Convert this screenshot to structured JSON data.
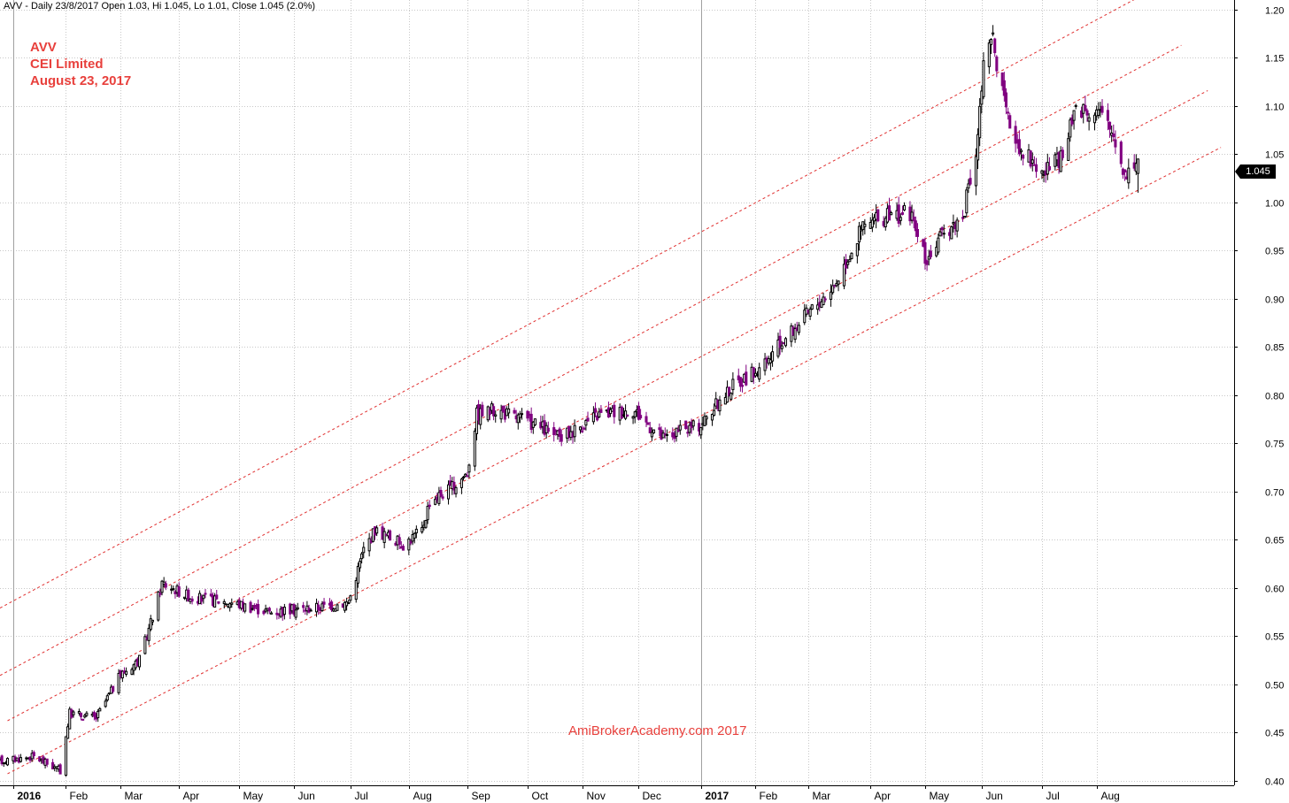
{
  "header": {
    "text": "AVV - Daily 23/8/2017 Open 1.03, Hi 1.045, Lo 1.01, Close 1.045 (2.0%)"
  },
  "labels": {
    "ticker": "AVV",
    "company": "CEI Limited",
    "date": "August 23, 2017",
    "watermark": "AmiBrokerAcademy.com  2017",
    "last_price": "1.045"
  },
  "colors": {
    "annotation": "#e8403c",
    "up_candle": "#000000",
    "down_candle": "#800080",
    "channel": "#e03030",
    "grid": "#c8c8c8"
  },
  "chart_data": {
    "type": "candlestick",
    "x_axis_labels": [
      {
        "label": "2016",
        "date": "2016-01-04",
        "bold": true
      },
      {
        "label": "Feb",
        "date": "2016-02-01"
      },
      {
        "label": "Mar",
        "date": "2016-03-01"
      },
      {
        "label": "Apr",
        "date": "2016-04-01"
      },
      {
        "label": "May",
        "date": "2016-05-03"
      },
      {
        "label": "Jun",
        "date": "2016-06-01"
      },
      {
        "label": "Jul",
        "date": "2016-07-01"
      },
      {
        "label": "Aug",
        "date": "2016-08-01"
      },
      {
        "label": "Sep",
        "date": "2016-09-01"
      },
      {
        "label": "Oct",
        "date": "2016-10-03"
      },
      {
        "label": "Nov",
        "date": "2016-11-01"
      },
      {
        "label": "Dec",
        "date": "2016-12-01"
      },
      {
        "label": "2017",
        "date": "2017-01-03",
        "bold": true
      },
      {
        "label": "Feb",
        "date": "2017-02-01"
      },
      {
        "label": "Mar",
        "date": "2017-03-01"
      },
      {
        "label": "Apr",
        "date": "2017-04-03"
      },
      {
        "label": "May",
        "date": "2017-05-02"
      },
      {
        "label": "Jun",
        "date": "2017-06-01"
      },
      {
        "label": "Jul",
        "date": "2017-07-03"
      },
      {
        "label": "Aug",
        "date": "2017-08-01"
      }
    ],
    "x_range": [
      "2015-12-28",
      "2017-10-13"
    ],
    "y_ticks": [
      "0.40",
      "0.45",
      "0.50",
      "0.55",
      "0.60",
      "0.65",
      "0.70",
      "0.75",
      "0.80",
      "0.85",
      "0.90",
      "0.95",
      "1.00",
      "1.05",
      "1.10",
      "1.15",
      "1.20"
    ],
    "ylim": [
      0.395,
      1.21
    ],
    "last": {
      "date": "2017-08-23",
      "open": 1.03,
      "high": 1.045,
      "low": 1.01,
      "close": 1.045
    },
    "price_path": [
      [
        "2015-12-28",
        0.42
      ],
      [
        "2016-01-15",
        0.425
      ],
      [
        "2016-01-29",
        0.41
      ],
      [
        "2016-02-03",
        0.47
      ],
      [
        "2016-02-17",
        0.465
      ],
      [
        "2016-03-01",
        0.51
      ],
      [
        "2016-03-11",
        0.525
      ],
      [
        "2016-03-18",
        0.57
      ],
      [
        "2016-03-23",
        0.605
      ],
      [
        "2016-04-08",
        0.59
      ],
      [
        "2016-04-28",
        0.585
      ],
      [
        "2016-05-20",
        0.575
      ],
      [
        "2016-06-15",
        0.58
      ],
      [
        "2016-06-30",
        0.585
      ],
      [
        "2016-07-08",
        0.64
      ],
      [
        "2016-07-14",
        0.66
      ],
      [
        "2016-07-29",
        0.645
      ],
      [
        "2016-08-08",
        0.66
      ],
      [
        "2016-08-12",
        0.69
      ],
      [
        "2016-08-25",
        0.705
      ],
      [
        "2016-09-01",
        0.72
      ],
      [
        "2016-09-06",
        0.78
      ],
      [
        "2016-09-16",
        0.785
      ],
      [
        "2016-10-07",
        0.77
      ],
      [
        "2016-10-20",
        0.755
      ],
      [
        "2016-11-10",
        0.78
      ],
      [
        "2016-11-28",
        0.785
      ],
      [
        "2016-12-14",
        0.755
      ],
      [
        "2017-01-03",
        0.77
      ],
      [
        "2017-01-20",
        0.81
      ],
      [
        "2017-02-06",
        0.83
      ],
      [
        "2017-02-15",
        0.855
      ],
      [
        "2017-03-01",
        0.885
      ],
      [
        "2017-03-15",
        0.915
      ],
      [
        "2017-03-30",
        0.975
      ],
      [
        "2017-04-12",
        0.985
      ],
      [
        "2017-04-24",
        0.99
      ],
      [
        "2017-05-02",
        0.94
      ],
      [
        "2017-05-15",
        0.975
      ],
      [
        "2017-05-22",
        0.985
      ],
      [
        "2017-05-29",
        1.05
      ],
      [
        "2017-06-02",
        1.14
      ],
      [
        "2017-06-07",
        1.17
      ],
      [
        "2017-06-14",
        1.09
      ],
      [
        "2017-06-21",
        1.06
      ],
      [
        "2017-07-03",
        1.03
      ],
      [
        "2017-07-14",
        1.045
      ],
      [
        "2017-07-21",
        1.1
      ],
      [
        "2017-08-02",
        1.095
      ],
      [
        "2017-08-10",
        1.07
      ],
      [
        "2017-08-16",
        1.03
      ],
      [
        "2017-08-23",
        1.045
      ]
    ],
    "channel_lines": [
      {
        "start": [
          "2015-12-28",
          0.579
        ],
        "end": [
          "2017-09-01",
          1.222
        ]
      },
      {
        "start": [
          "2015-12-28",
          0.509
        ],
        "end": [
          "2017-09-15",
          1.163
        ]
      },
      {
        "start": [
          "2016-01-01",
          0.462
        ],
        "end": [
          "2017-09-29",
          1.116
        ]
      },
      {
        "start": [
          "2016-01-01",
          0.407
        ],
        "end": [
          "2017-10-06",
          1.057
        ]
      }
    ],
    "grid": true
  }
}
